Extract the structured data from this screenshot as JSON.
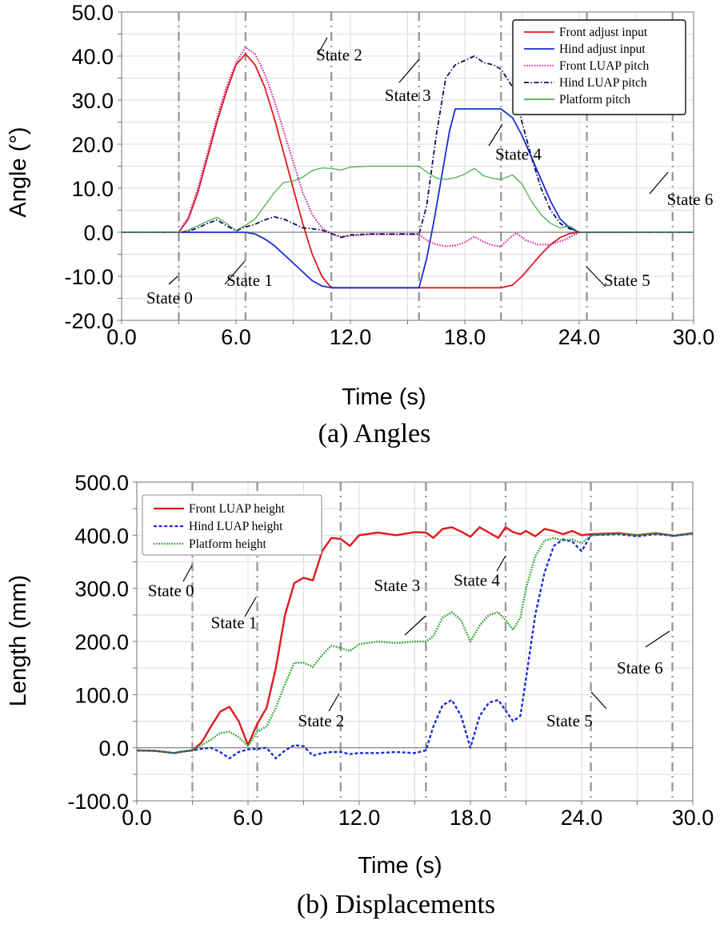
{
  "chart_data": [
    {
      "id": "angles",
      "type": "line",
      "caption": "(a) Angles",
      "xlabel": "Time (s)",
      "ylabel": "Angle (°)",
      "xlim": [
        0,
        30
      ],
      "ylim": [
        -20,
        50
      ],
      "xticks": [
        "0.0",
        "6.0",
        "12.0",
        "18.0",
        "24.0",
        "30.0"
      ],
      "xtick_values": [
        0,
        6,
        12,
        18,
        24,
        30
      ],
      "yticks": [
        "50.0",
        "40.0",
        "30.0",
        "20.0",
        "10.0",
        "0.0",
        "-10.0",
        "-20.0"
      ],
      "ytick_values": [
        50,
        40,
        30,
        20,
        10,
        0,
        -10,
        -20
      ],
      "grid": true,
      "legend_position": "top-right",
      "state_lines": [
        3.0,
        6.5,
        11.0,
        15.6,
        19.9,
        24.4,
        28.9
      ],
      "annotations": [
        {
          "text": "State 0",
          "x": 1.3,
          "y": -16.2
        },
        {
          "text": "State 1",
          "x": 5.5,
          "y": -12.2
        },
        {
          "text": "State 2",
          "x": 10.2,
          "y": 39.0
        },
        {
          "text": "State 3",
          "x": 13.8,
          "y": 29.8
        },
        {
          "text": "State 4",
          "x": 19.6,
          "y": 16.5
        },
        {
          "text": "State 5",
          "x": 25.3,
          "y": -12.2
        },
        {
          "text": "State 6",
          "x": 28.6,
          "y": 6.2
        }
      ],
      "series": [
        {
          "name": "Front adjust input",
          "color": "#e01a1a",
          "dash": "solid",
          "x": [
            0,
            3.0,
            3.5,
            4.0,
            4.5,
            5.0,
            5.5,
            6.0,
            6.5,
            7.0,
            7.5,
            8.0,
            8.5,
            9.0,
            9.5,
            10.0,
            10.5,
            11.0,
            15.6,
            19.9,
            20.5,
            21.0,
            21.5,
            22.0,
            22.5,
            23.0,
            23.5,
            24.0,
            30
          ],
          "y": [
            0,
            0,
            3,
            9,
            17,
            25,
            32,
            38,
            40.5,
            38,
            33,
            26,
            18,
            10,
            2,
            -5,
            -10,
            -12.6,
            -12.6,
            -12.6,
            -12,
            -10,
            -7.5,
            -5,
            -2.8,
            -1.2,
            -0.3,
            0,
            0
          ]
        },
        {
          "name": "Hind adjust input",
          "color": "#1a2ed8",
          "dash": "solid",
          "x": [
            0,
            6.5,
            7.0,
            7.5,
            8.0,
            8.5,
            9.0,
            9.5,
            10.0,
            10.5,
            11.0,
            15.6,
            16.0,
            16.4,
            16.8,
            17.2,
            17.5,
            19.9,
            20.5,
            21.0,
            21.5,
            22.0,
            22.5,
            23.0,
            23.5,
            24.0,
            30
          ],
          "y": [
            0,
            0,
            -0.4,
            -1.5,
            -3,
            -5,
            -7,
            -9,
            -11,
            -12.2,
            -12.6,
            -12.6,
            -6,
            3,
            13,
            23,
            28,
            28,
            26,
            22,
            17,
            12,
            7,
            3,
            1,
            0,
            0
          ]
        },
        {
          "name": "Front LUAP pitch",
          "color": "#d020a0",
          "dash": "dotted",
          "x": [
            0,
            3.0,
            3.5,
            4.0,
            4.5,
            5.0,
            5.5,
            6.0,
            6.5,
            7.0,
            7.5,
            8.0,
            8.5,
            9.0,
            9.5,
            10.0,
            10.5,
            11.0,
            11.5,
            12,
            13,
            14,
            15,
            15.6,
            16.0,
            16.5,
            17.0,
            17.5,
            18.0,
            18.5,
            19.0,
            19.5,
            19.9,
            20.3,
            20.7,
            21.2,
            21.8,
            22.5,
            23.3,
            24.0,
            30
          ],
          "y": [
            0,
            0,
            3.5,
            10,
            18,
            26,
            33,
            38.5,
            42,
            40.5,
            36,
            30,
            23,
            16,
            9,
            4,
            1,
            -0.3,
            -1,
            -0.8,
            -0.5,
            -0.5,
            -0.5,
            -0.5,
            -1.8,
            -2.8,
            -3.2,
            -3.0,
            -2.3,
            -1,
            -2.2,
            -3,
            -3.2,
            -1.5,
            -0.2,
            -1.8,
            -2.8,
            -2.8,
            -1.6,
            0,
            0
          ]
        },
        {
          "name": "Hind LUAP pitch",
          "color": "#10105a",
          "dash": "dashdot",
          "x": [
            0,
            3.0,
            3.5,
            4.0,
            4.5,
            5.0,
            5.5,
            6.0,
            6.5,
            7.0,
            7.5,
            8.0,
            8.5,
            9.0,
            9.5,
            10.0,
            10.5,
            11.0,
            11.5,
            12,
            13,
            14,
            15,
            15.6,
            16.0,
            16.5,
            17.0,
            17.5,
            18.0,
            18.5,
            19.0,
            19.5,
            19.9,
            20.5,
            21.0,
            21.5,
            22.0,
            22.5,
            23.0,
            23.5,
            24.0,
            30
          ],
          "y": [
            0,
            0,
            0.2,
            1,
            2,
            2.8,
            1.5,
            0.3,
            1.2,
            1.8,
            2.8,
            3.5,
            3,
            2,
            1,
            0.8,
            0.5,
            -0.3,
            -1.2,
            -0.6,
            -0.4,
            -0.4,
            -0.4,
            -0.4,
            6,
            22,
            35,
            38,
            39,
            40,
            38.5,
            38,
            37,
            33,
            25,
            17,
            10,
            5,
            2,
            0.8,
            0,
            0
          ]
        },
        {
          "name": "Platform pitch",
          "color": "#3fae3f",
          "dash": "solid",
          "x": [
            0,
            3.0,
            3.5,
            4.0,
            4.5,
            5.0,
            5.5,
            6.0,
            6.5,
            7.0,
            7.5,
            8.0,
            8.5,
            9.0,
            9.5,
            10.0,
            10.5,
            11.0,
            11.5,
            12,
            13,
            14,
            15,
            15.6,
            16.0,
            16.5,
            17.0,
            17.5,
            18.0,
            18.5,
            19.0,
            19.5,
            19.9,
            20.5,
            21.0,
            21.5,
            22.0,
            22.5,
            23.0,
            23.5,
            24.0,
            30
          ],
          "y": [
            0,
            0,
            0.5,
            1.5,
            2.5,
            3.4,
            2,
            0.4,
            1.6,
            3,
            6,
            9,
            11.3,
            11.6,
            12.5,
            14,
            14.6,
            14.5,
            14.1,
            14.8,
            15,
            15,
            15,
            15,
            13.7,
            12.3,
            12,
            12.4,
            13.2,
            14.5,
            12.8,
            12.2,
            12,
            13,
            11,
            7,
            4,
            2,
            1,
            1.4,
            0,
            0
          ]
        }
      ]
    },
    {
      "id": "displacements",
      "type": "line",
      "caption": "(b) Displacements",
      "xlabel": "Time (s)",
      "ylabel": "Length (mm)",
      "xlim": [
        0,
        30
      ],
      "ylim": [
        -100,
        500
      ],
      "xticks": [
        "0.0",
        "6.0",
        "12.0",
        "18.0",
        "24.0",
        "30.0"
      ],
      "xtick_values": [
        0,
        6,
        12,
        18,
        24,
        30
      ],
      "yticks": [
        "500.0",
        "400.0",
        "300.0",
        "200.0",
        "100.0",
        "0.0",
        "-100.0"
      ],
      "ytick_values": [
        500,
        400,
        300,
        200,
        100,
        0,
        -100
      ],
      "grid": true,
      "legend_position": "top-left",
      "state_lines": [
        3.0,
        6.5,
        11.0,
        15.6,
        19.9,
        24.5,
        28.9
      ],
      "annotations": [
        {
          "text": "State 0",
          "x": 0.6,
          "y": 285
        },
        {
          "text": "State 1",
          "x": 4.0,
          "y": 225
        },
        {
          "text": "State 2",
          "x": 8.7,
          "y": 40
        },
        {
          "text": "State 3",
          "x": 12.8,
          "y": 295
        },
        {
          "text": "State 4",
          "x": 17.1,
          "y": 305
        },
        {
          "text": "State 5",
          "x": 22.1,
          "y": 40
        },
        {
          "text": "State 6",
          "x": 25.9,
          "y": 140
        }
      ],
      "series": [
        {
          "name": "Front LUAP height",
          "color": "#e01a1a",
          "dash": "solid",
          "x": [
            0,
            1.0,
            2.0,
            2.5,
            3.0,
            3.5,
            4.0,
            4.5,
            5.0,
            5.5,
            6.0,
            6.5,
            7.0,
            7.5,
            8.0,
            8.5,
            9.0,
            9.5,
            10.0,
            10.5,
            11.0,
            11.5,
            12.0,
            13.0,
            14.0,
            15.0,
            15.6,
            16.0,
            16.5,
            17.0,
            17.5,
            18.0,
            18.5,
            19.0,
            19.5,
            19.9,
            20.3,
            20.7,
            21.0,
            21.5,
            22.0,
            22.5,
            23.0,
            23.5,
            24.0,
            24.5,
            26,
            27,
            28,
            29,
            30
          ],
          "y": [
            -5,
            -6,
            -10,
            -7,
            -5,
            10,
            40,
            68,
            77,
            50,
            5,
            45,
            75,
            150,
            250,
            310,
            320,
            315,
            370,
            395,
            393,
            380,
            400,
            405,
            400,
            406,
            405,
            395,
            412,
            415,
            407,
            397,
            415,
            405,
            395,
            415,
            406,
            402,
            408,
            398,
            412,
            408,
            402,
            408,
            400,
            402,
            404,
            400,
            404,
            399,
            404
          ]
        },
        {
          "name": "Hind LUAP height",
          "color": "#1a2ed8",
          "dash": "dashed",
          "x": [
            0,
            1.0,
            2.0,
            2.5,
            3.0,
            3.5,
            4.0,
            4.5,
            5.0,
            5.5,
            6.0,
            6.5,
            7.0,
            7.5,
            8.0,
            8.5,
            9.0,
            9.5,
            10.0,
            10.5,
            11.0,
            11.5,
            12.0,
            13.0,
            14.0,
            15.0,
            15.6,
            16.0,
            16.5,
            17.0,
            17.5,
            18.0,
            18.5,
            19.0,
            19.5,
            19.9,
            20.3,
            20.7,
            21.0,
            21.5,
            22.0,
            22.5,
            23.0,
            23.5,
            24.0,
            24.5,
            26,
            27,
            28,
            29,
            30
          ],
          "y": [
            -5,
            -6,
            -10,
            -7,
            -5,
            -2,
            0,
            -8,
            -20,
            -8,
            -3,
            -2,
            0,
            -20,
            -5,
            5,
            3,
            -15,
            -10,
            -8,
            -8,
            -12,
            -10,
            -10,
            -8,
            -10,
            -5,
            40,
            80,
            90,
            60,
            0,
            60,
            85,
            90,
            70,
            50,
            60,
            130,
            250,
            330,
            380,
            392,
            388,
            370,
            400,
            402,
            398,
            402,
            399,
            403
          ]
        },
        {
          "name": "Platform height",
          "color": "#22a022",
          "dash": "dotted",
          "x": [
            0,
            1.0,
            2.0,
            2.5,
            3.0,
            3.5,
            4.0,
            4.5,
            5.0,
            5.5,
            6.0,
            6.5,
            7.0,
            7.5,
            8.0,
            8.5,
            9.0,
            9.5,
            10.0,
            10.5,
            11.0,
            11.5,
            12.0,
            13.0,
            14.0,
            15.0,
            15.6,
            16.0,
            16.5,
            17.0,
            17.5,
            18.0,
            18.5,
            19.0,
            19.5,
            19.9,
            20.3,
            20.7,
            21.0,
            21.5,
            22.0,
            22.5,
            23.0,
            23.5,
            24.0,
            24.5,
            26,
            27,
            28,
            29,
            30
          ],
          "y": [
            -5,
            -6,
            -10,
            -7,
            -5,
            5,
            15,
            28,
            30,
            20,
            3,
            30,
            40,
            75,
            120,
            160,
            160,
            152,
            175,
            192,
            188,
            182,
            195,
            200,
            197,
            200,
            200,
            210,
            245,
            255,
            240,
            200,
            230,
            250,
            255,
            240,
            222,
            245,
            300,
            360,
            390,
            395,
            390,
            392,
            385,
            400,
            403,
            400,
            404,
            399,
            404
          ]
        }
      ]
    }
  ]
}
